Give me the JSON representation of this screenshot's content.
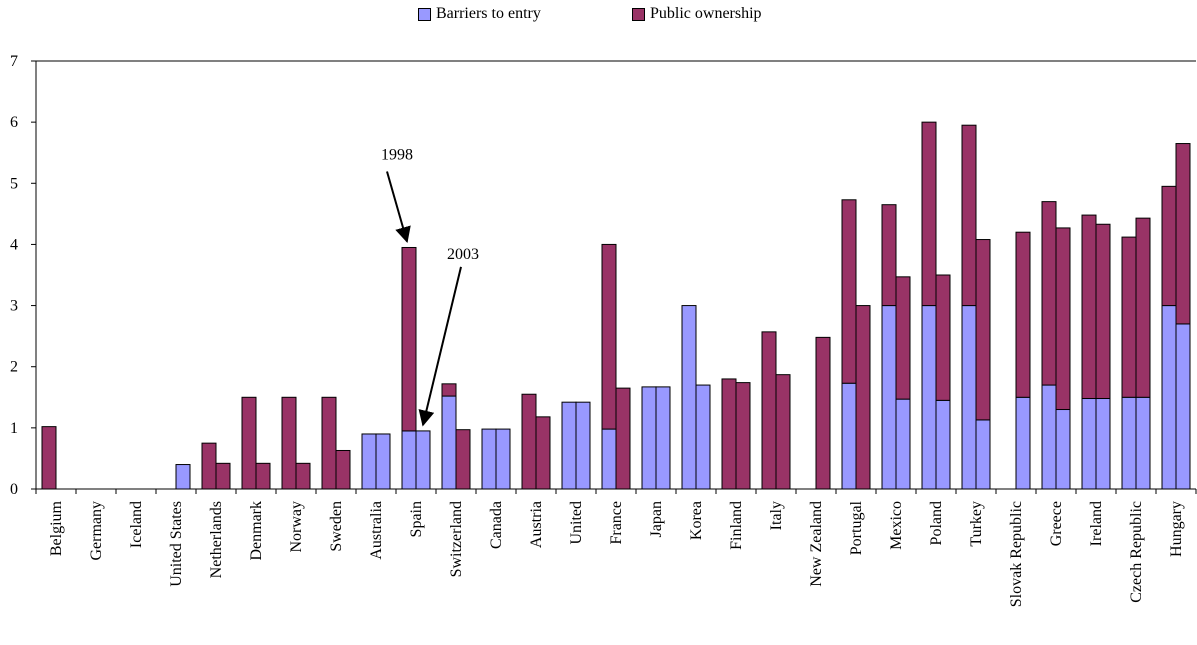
{
  "chart_data": {
    "type": "bar",
    "stacked": true,
    "bars_per_category": [
      "1998",
      "2003"
    ],
    "categories": [
      "Belgium",
      "Germany",
      "Iceland",
      "United States",
      "Netherlands",
      "Denmark",
      "Norway",
      "Sweden",
      "Australia",
      "Spain",
      "Switzerland",
      "Canada",
      "Austria",
      "United",
      "France",
      "Japan",
      "Korea",
      "Finland",
      "Italy",
      "New Zealand",
      "Portugal",
      "Mexico",
      "Poland",
      "Turkey",
      "Slovak Republic",
      "Greece",
      "Ireland",
      "Czech Republic",
      "Hungary"
    ],
    "series": [
      {
        "name": "Barriers to entry",
        "color": "#9999ff",
        "values_1998": [
          0,
          0,
          0,
          0,
          0,
          0,
          0,
          0,
          0.9,
          0.95,
          1.52,
          0.98,
          0,
          1.42,
          0.98,
          1.67,
          3.0,
          0,
          0,
          0,
          1.73,
          3.0,
          3.0,
          3.0,
          0,
          1.7,
          1.48,
          1.5,
          3.0
        ],
        "values_2003": [
          0,
          0,
          0,
          0.4,
          0,
          0,
          0,
          0,
          0.9,
          0.95,
          0,
          0.98,
          0,
          1.42,
          0,
          1.67,
          1.7,
          0,
          0,
          0,
          0,
          1.47,
          1.45,
          1.13,
          1.5,
          1.3,
          1.48,
          1.5,
          2.7
        ]
      },
      {
        "name": "Public ownership",
        "color": "#993366",
        "values_1998": [
          1.02,
          0,
          0,
          0,
          0.75,
          1.5,
          1.5,
          1.5,
          0,
          3.0,
          0.2,
          0,
          1.55,
          0,
          3.02,
          0,
          0,
          1.8,
          2.57,
          0,
          3.0,
          1.65,
          3.0,
          2.95,
          0,
          3.0,
          3.0,
          2.62,
          1.95
        ],
        "values_2003": [
          0,
          0,
          0,
          0,
          0.42,
          0.42,
          0.42,
          0.63,
          0,
          0,
          0.97,
          0,
          1.18,
          0,
          1.65,
          0,
          0,
          1.74,
          1.87,
          2.48,
          3.0,
          2.0,
          2.05,
          2.95,
          2.7,
          2.97,
          2.85,
          2.93,
          2.95
        ]
      }
    ],
    "ylim": [
      0,
      7
    ],
    "yticks": [
      0,
      1,
      2,
      3,
      4,
      5,
      6,
      7
    ],
    "legend_placement": "top-center",
    "grid": false,
    "annotations": [
      {
        "text": "1998",
        "category": "Spain",
        "bar": "1998"
      },
      {
        "text": "2003",
        "category": "Spain",
        "bar": "2003"
      }
    ]
  }
}
